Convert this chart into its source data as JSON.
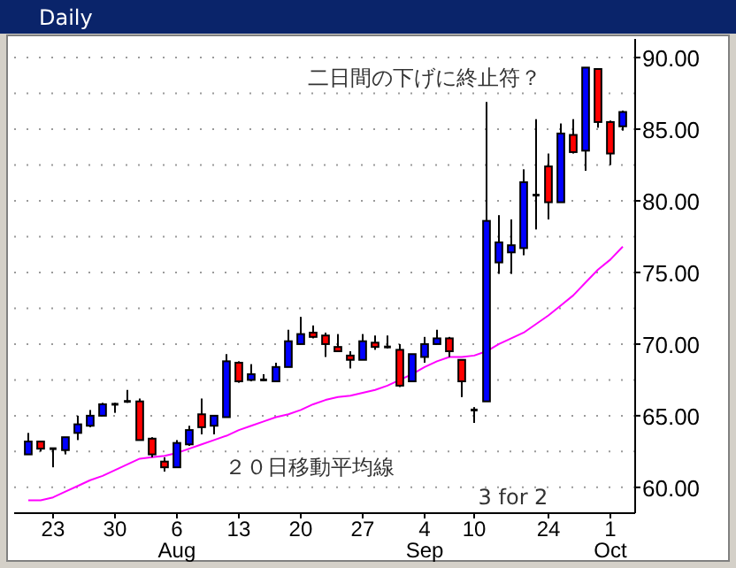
{
  "chart_data": {
    "type": "candlestick",
    "title": "Daily",
    "categories": [
      null,
      null,
      "23",
      null,
      null,
      null,
      null,
      "30",
      null,
      null,
      null,
      null,
      "6\nAug",
      null,
      null,
      null,
      null,
      "13",
      null,
      null,
      null,
      null,
      "20",
      null,
      null,
      null,
      null,
      "27",
      null,
      null,
      null,
      null,
      "4\nSep",
      null,
      null,
      null,
      "10",
      null,
      null,
      null,
      null,
      null,
      "24",
      null,
      null,
      null,
      null,
      "1\nOct",
      null
    ],
    "ohlc": [
      [
        62.3,
        63.8,
        62.3,
        63.2
      ],
      [
        63.2,
        63.2,
        62.5,
        62.7
      ],
      [
        62.7,
        62.7,
        61.4,
        62.7
      ],
      [
        62.6,
        63.5,
        62.3,
        63.5
      ],
      [
        63.8,
        65.0,
        63.3,
        64.4
      ],
      [
        64.3,
        65.4,
        64.2,
        65.0
      ],
      [
        65.0,
        65.9,
        65.0,
        65.8
      ],
      [
        65.8,
        65.9,
        65.2,
        65.8
      ],
      [
        66.0,
        66.8,
        65.9,
        66.0
      ],
      [
        66.0,
        66.2,
        63.3,
        63.3
      ],
      [
        63.4,
        63.5,
        62.1,
        62.3
      ],
      [
        61.8,
        62.1,
        61.1,
        61.4
      ],
      [
        61.4,
        63.3,
        61.4,
        63.1
      ],
      [
        63.0,
        64.3,
        62.9,
        64.0
      ],
      [
        65.1,
        66.2,
        63.7,
        64.2
      ],
      [
        64.3,
        65.0,
        63.7,
        65.0
      ],
      [
        64.9,
        69.3,
        64.9,
        68.8
      ],
      [
        68.7,
        68.8,
        67.3,
        67.4
      ],
      [
        67.5,
        68.6,
        67.4,
        67.9
      ],
      [
        67.5,
        67.9,
        67.4,
        67.5
      ],
      [
        67.4,
        68.7,
        67.4,
        68.4
      ],
      [
        68.4,
        71.0,
        68.4,
        70.2
      ],
      [
        70.0,
        71.9,
        70.0,
        70.7
      ],
      [
        70.8,
        71.3,
        70.4,
        70.5
      ],
      [
        70.6,
        70.8,
        69.1,
        70.0
      ],
      [
        69.8,
        70.7,
        69.5,
        69.5
      ],
      [
        69.2,
        69.5,
        68.3,
        68.9
      ],
      [
        68.9,
        70.7,
        68.9,
        70.2
      ],
      [
        70.1,
        70.6,
        69.6,
        69.8
      ],
      [
        69.8,
        70.6,
        69.7,
        69.8
      ],
      [
        69.6,
        70.0,
        67.0,
        67.1
      ],
      [
        67.4,
        69.3,
        67.4,
        69.3
      ],
      [
        69.1,
        70.5,
        68.7,
        70.0
      ],
      [
        70.0,
        71.0,
        70.0,
        70.4
      ],
      [
        70.4,
        70.5,
        69.1,
        69.5
      ],
      [
        68.9,
        68.9,
        66.3,
        67.4
      ],
      [
        65.4,
        65.6,
        64.5,
        65.4
      ],
      [
        66.0,
        86.9,
        66.0,
        78.6
      ],
      [
        75.7,
        79.0,
        74.9,
        77.1
      ],
      [
        76.4,
        78.7,
        74.9,
        76.9
      ],
      [
        76.7,
        82.2,
        76.2,
        81.3
      ],
      [
        80.4,
        85.7,
        78.0,
        80.4
      ],
      [
        82.4,
        83.3,
        78.7,
        79.9
      ],
      [
        79.9,
        85.4,
        79.9,
        84.7
      ],
      [
        84.6,
        85.7,
        83.3,
        83.4
      ],
      [
        83.5,
        89.3,
        82.1,
        89.3
      ],
      [
        89.2,
        89.2,
        85.1,
        85.5
      ],
      [
        85.5,
        85.6,
        82.5,
        83.3
      ],
      [
        85.2,
        86.3,
        84.9,
        86.2
      ]
    ],
    "colors": [
      "#0000ff",
      "#ff0000",
      "#000000",
      "#0000ff",
      "#0000ff",
      "#0000ff",
      "#0000ff",
      "#000000",
      "#000000",
      "#ff0000",
      "#ff0000",
      "#ff0000",
      "#0000ff",
      "#0000ff",
      "#ff0000",
      "#0000ff",
      "#0000ff",
      "#ff0000",
      "#0000ff",
      "#000000",
      "#0000ff",
      "#0000ff",
      "#0000ff",
      "#ff0000",
      "#ff0000",
      "#ff0000",
      "#ff0000",
      "#0000ff",
      "#ff0000",
      "#000000",
      "#ff0000",
      "#0000ff",
      "#0000ff",
      "#0000ff",
      "#ff0000",
      "#ff0000",
      "#000000",
      "#0000ff",
      "#0000ff",
      "#0000ff",
      "#0000ff",
      "#000000",
      "#ff0000",
      "#0000ff",
      "#ff0000",
      "#0000ff",
      "#ff0000",
      "#ff0000",
      "#0000ff"
    ],
    "series": [
      {
        "type": "line",
        "color": "#ff00ff",
        "values": [
          59.1,
          59.1,
          59.3,
          59.7,
          60.1,
          60.5,
          60.8,
          61.2,
          61.6,
          62.0,
          62.1,
          62.2,
          62.4,
          62.7,
          63.0,
          63.3,
          63.6,
          64.0,
          64.3,
          64.6,
          64.9,
          65.1,
          65.4,
          65.8,
          66.1,
          66.3,
          66.4,
          66.6,
          66.8,
          67.1,
          67.5,
          67.9,
          68.4,
          68.8,
          69.1,
          69.1,
          69.2,
          69.5,
          70.0,
          70.4,
          70.8,
          71.4,
          72.0,
          72.7,
          73.4,
          74.3,
          75.2,
          75.9,
          76.8
        ]
      }
    ],
    "ylim": [
      58.2,
      91.3
    ],
    "yticks": [
      {
        "value": 60,
        "label": "60.00"
      },
      {
        "value": 62.5,
        "label": null
      },
      {
        "value": 65,
        "label": "65.00"
      },
      {
        "value": 67.5,
        "label": null
      },
      {
        "value": 70,
        "label": "70.00"
      },
      {
        "value": 72.5,
        "label": null
      },
      {
        "value": 75,
        "label": "75.00"
      },
      {
        "value": 77.5,
        "label": null
      },
      {
        "value": 80,
        "label": "80.00"
      },
      {
        "value": 82.5,
        "label": null
      },
      {
        "value": 85,
        "label": "85.00"
      },
      {
        "value": 87.5,
        "label": null
      },
      {
        "value": 90,
        "label": "90.00"
      }
    ],
    "grid": "y",
    "annotations": [
      "二日間の下げに終止符？",
      "２０日移動平均線",
      "3 for 2"
    ]
  }
}
